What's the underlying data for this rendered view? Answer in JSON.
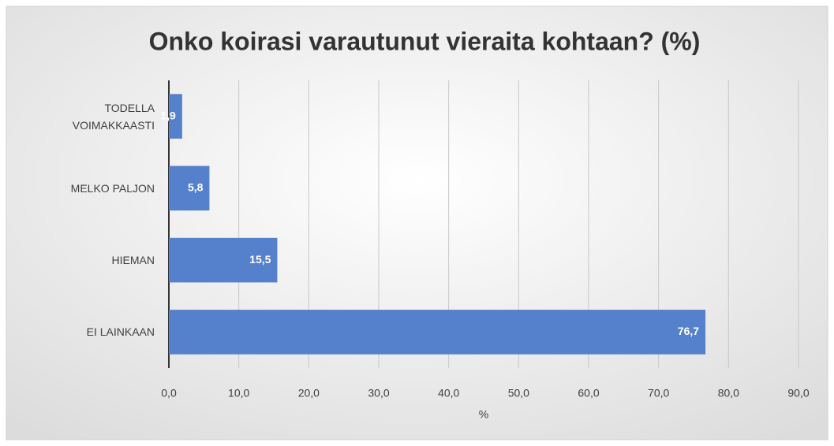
{
  "chart_data": {
    "type": "barh",
    "title": "Onko koirasi varautunut vieraita kohtaan? (%)",
    "categories": [
      "TODELLA VOIMAKKAASTI",
      "MELKO PALJON",
      "HIEMAN",
      "EI LAINKAAN"
    ],
    "values": [
      1.9,
      5.8,
      15.5,
      76.7
    ],
    "value_labels": [
      "1,9",
      "5,8",
      "15,5",
      "76,7"
    ],
    "color": "#5580cc",
    "xlabel": "%",
    "xlim": [
      0,
      90
    ],
    "xticks": [
      {
        "value": 0,
        "label": "0,0"
      },
      {
        "value": 10,
        "label": "10,0"
      },
      {
        "value": 20,
        "label": "20,0"
      },
      {
        "value": 30,
        "label": "30,0"
      },
      {
        "value": 40,
        "label": "40,0"
      },
      {
        "value": 50,
        "label": "50,0"
      },
      {
        "value": 60,
        "label": "60,0"
      },
      {
        "value": 70,
        "label": "70,0"
      },
      {
        "value": 80,
        "label": "80,0"
      },
      {
        "value": 90,
        "label": "90,0"
      }
    ],
    "grid": true
  }
}
